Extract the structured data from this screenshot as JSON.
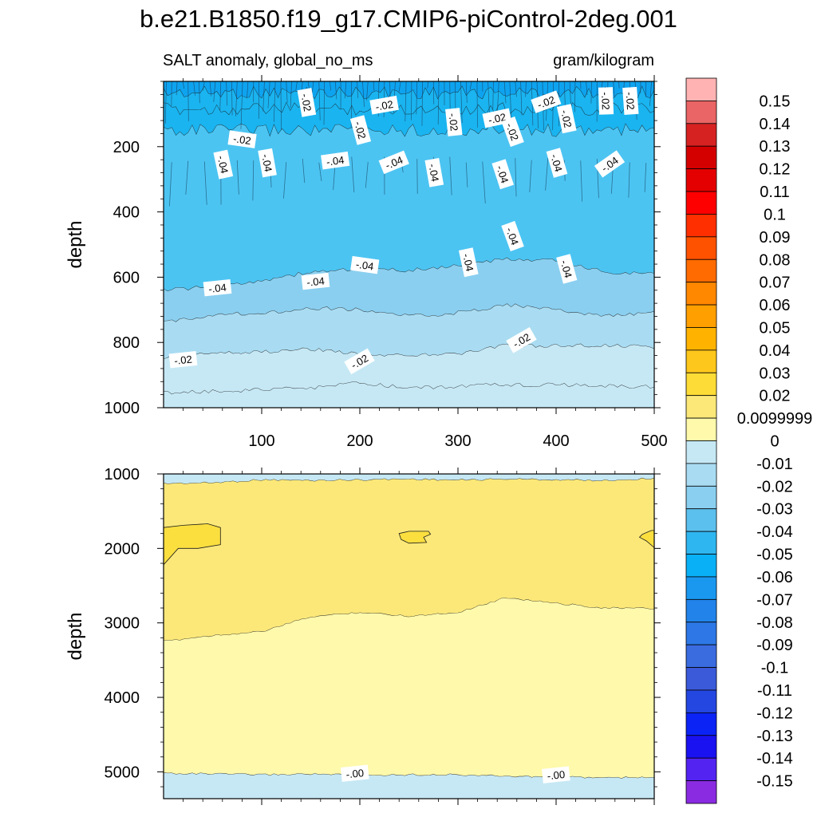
{
  "figure": {
    "title": "b.e21.B1850.f19_g17.CMIP6-piControl-2deg.001",
    "left_subtitle": "SALT anomaly, global_no_ms",
    "right_subtitle": "gram/kilogram"
  },
  "chart_data": [
    {
      "type": "contour",
      "panel": "upper",
      "ylabel": "depth",
      "xlabel": "",
      "xlim": [
        0,
        500
      ],
      "ylim": [
        1000,
        0
      ],
      "x_ticks": [
        100,
        200,
        300,
        400,
        500
      ],
      "y_ticks": [
        200,
        400,
        600,
        800,
        1000
      ],
      "bands": [
        {
          "range": [
            -0.07,
            -0.06
          ],
          "color": "#0ea3ef",
          "top": [
            0,
            0,
            0,
            0,
            0,
            0,
            0,
            0,
            0,
            0,
            0
          ],
          "bottom": [
            35,
            35,
            35,
            35,
            35,
            35,
            35,
            35,
            35,
            35,
            35
          ]
        },
        {
          "range": [
            -0.06,
            -0.05
          ],
          "color": "#1ab4f0",
          "top": [
            35,
            35,
            35,
            35,
            35,
            35,
            35,
            35,
            35,
            35,
            35
          ],
          "bottom": [
            85,
            85,
            85,
            85,
            85,
            85,
            85,
            85,
            85,
            85,
            85
          ]
        },
        {
          "range": [
            -0.05,
            -0.04
          ],
          "color": "#1ab4f0",
          "top": [
            85,
            85,
            85,
            85,
            85,
            85,
            85,
            85,
            85,
            85,
            85
          ],
          "bottom": [
            150,
            150,
            150,
            150,
            150,
            150,
            150,
            150,
            150,
            150,
            150
          ]
        },
        {
          "range": [
            -0.04,
            -0.03
          ],
          "color": "#4cc4f2",
          "top": [
            150,
            150,
            150,
            150,
            150,
            150,
            150,
            150,
            150,
            150,
            150
          ],
          "bottom": [
            640,
            630,
            610,
            585,
            575,
            580,
            565,
            545,
            550,
            585,
            590
          ]
        },
        {
          "range": [
            -0.03,
            -0.02
          ],
          "color": "#8acff0",
          "top": [
            640,
            630,
            610,
            585,
            575,
            580,
            565,
            545,
            550,
            585,
            590
          ],
          "bottom": [
            740,
            715,
            710,
            695,
            700,
            720,
            710,
            685,
            700,
            720,
            710
          ]
        },
        {
          "range": [
            -0.02,
            -0.01
          ],
          "color": "#a9dcf2",
          "top": [
            740,
            715,
            710,
            695,
            700,
            720,
            710,
            685,
            700,
            720,
            710
          ],
          "bottom": [
            845,
            830,
            830,
            820,
            835,
            840,
            835,
            810,
            810,
            810,
            815
          ]
        },
        {
          "range": [
            -0.01,
            0
          ],
          "color": "#c6e8f5",
          "top": [
            845,
            830,
            830,
            820,
            835,
            840,
            835,
            810,
            810,
            810,
            815
          ],
          "bottom": [
            955,
            950,
            945,
            940,
            925,
            940,
            935,
            930,
            930,
            935,
            935
          ]
        },
        {
          "range": [
            0,
            0.01
          ],
          "color": "#c6e8f5",
          "top": [
            955,
            950,
            945,
            940,
            925,
            940,
            935,
            930,
            930,
            935,
            935
          ],
          "bottom": [
            1000,
            1000,
            1000,
            1000,
            1000,
            1000,
            1000,
            1000,
            1000,
            1000,
            1000
          ]
        }
      ],
      "contour_labels": [
        {
          "text": "-.02",
          "x": 80,
          "y": 180
        },
        {
          "text": "-.02",
          "x": 145,
          "y": 65
        },
        {
          "text": "-.02",
          "x": 225,
          "y": 75
        },
        {
          "text": "-.02",
          "x": 200,
          "y": 150
        },
        {
          "text": "-.02",
          "x": 295,
          "y": 125
        },
        {
          "text": "-.02",
          "x": 340,
          "y": 115
        },
        {
          "text": "-.02",
          "x": 355,
          "y": 155
        },
        {
          "text": "-.02",
          "x": 390,
          "y": 65
        },
        {
          "text": "-.02",
          "x": 410,
          "y": 115
        },
        {
          "text": "-.02",
          "x": 450,
          "y": 60
        },
        {
          "text": "-.02",
          "x": 475,
          "y": 60
        },
        {
          "text": "-.04",
          "x": 60,
          "y": 255
        },
        {
          "text": "-.04",
          "x": 105,
          "y": 250
        },
        {
          "text": "-.04",
          "x": 175,
          "y": 245
        },
        {
          "text": "-.04",
          "x": 235,
          "y": 250
        },
        {
          "text": "-.04",
          "x": 275,
          "y": 280
        },
        {
          "text": "-.04",
          "x": 345,
          "y": 285
        },
        {
          "text": "-.04",
          "x": 400,
          "y": 250
        },
        {
          "text": "-.04",
          "x": 455,
          "y": 255
        },
        {
          "text": "-.04",
          "x": 355,
          "y": 475
        },
        {
          "text": "-.04",
          "x": 310,
          "y": 555
        },
        {
          "text": "-.04",
          "x": 205,
          "y": 565
        },
        {
          "text": "-.04",
          "x": 155,
          "y": 615
        },
        {
          "text": "-.04",
          "x": 55,
          "y": 635
        },
        {
          "text": "-.04",
          "x": 410,
          "y": 575
        },
        {
          "text": "-.02",
          "x": 20,
          "y": 855
        },
        {
          "text": "-.02",
          "x": 200,
          "y": 860
        },
        {
          "text": "-.02",
          "x": 365,
          "y": 795
        }
      ]
    },
    {
      "type": "contour",
      "panel": "lower",
      "ylabel": "depth",
      "xlabel": "",
      "xlim": [
        0,
        500
      ],
      "ylim": [
        5360,
        1000
      ],
      "x_ticks": [
        100,
        200,
        300,
        400,
        500
      ],
      "y_ticks": [
        1000,
        2000,
        3000,
        4000,
        5000
      ],
      "bands": [
        {
          "range": [
            0,
            0.01
          ],
          "color": "#c6e8f5",
          "top": [
            1000,
            1000,
            1000,
            1000,
            1000,
            1000,
            1000,
            1000,
            1000,
            1000,
            1000
          ],
          "bottom": [
            1130,
            1120,
            1080,
            1090,
            1080,
            1070,
            1085,
            1070,
            1080,
            1090,
            1060
          ]
        },
        {
          "range": [
            0.01,
            0.02
          ],
          "color": "#fce879",
          "top": [
            1130,
            1120,
            1080,
            1090,
            1080,
            1070,
            1085,
            1070,
            1080,
            1090,
            1060
          ],
          "bottom": [
            3250,
            3170,
            3120,
            2920,
            2860,
            2910,
            2860,
            2660,
            2740,
            2800,
            2810
          ]
        },
        {
          "range": [
            0,
            0.01
          ],
          "color": "#fef9ab",
          "top": [
            3250,
            3170,
            3120,
            2920,
            2860,
            2910,
            2860,
            2660,
            2740,
            2800,
            2810
          ],
          "bottom": [
            5020,
            5030,
            5040,
            5030,
            5050,
            5040,
            5040,
            5060,
            5070,
            5080,
            5080
          ]
        },
        {
          "range": [
            -0.01,
            0
          ],
          "color": "#c6e8f5",
          "top": [
            5020,
            5030,
            5040,
            5030,
            5050,
            5040,
            5040,
            5060,
            5070,
            5080,
            5080
          ],
          "bottom": [
            5360,
            5360,
            5360,
            5360,
            5360,
            5360,
            5360,
            5360,
            5360,
            5360,
            5360
          ]
        }
      ],
      "patches": [
        {
          "color": "#fbdf3f",
          "points": [
            [
              0,
              1720
            ],
            [
              20,
              1690
            ],
            [
              45,
              1670
            ],
            [
              58,
              1720
            ],
            [
              58,
              1950
            ],
            [
              35,
              2000
            ],
            [
              15,
              2000
            ],
            [
              0,
              2220
            ]
          ]
        },
        {
          "color": "#fbdf3f",
          "points": [
            [
              240,
              1800
            ],
            [
              250,
              1770
            ],
            [
              270,
              1770
            ],
            [
              272,
              1810
            ],
            [
              265,
              1850
            ],
            [
              268,
              1920
            ],
            [
              250,
              1930
            ],
            [
              242,
              1880
            ]
          ]
        },
        {
          "color": "#fbdf3f",
          "points": [
            [
              488,
              1810
            ],
            [
              497,
              1760
            ],
            [
              500,
              1760
            ],
            [
              500,
              1990
            ],
            [
              492,
              1900
            ],
            [
              485,
              1850
            ]
          ]
        }
      ],
      "contour_labels": [
        {
          "text": "-.00",
          "x": 195,
          "y": 5030
        },
        {
          "text": "-.00",
          "x": 400,
          "y": 5050
        }
      ]
    },
    {
      "type": "colorbar",
      "labels": [
        "0.15",
        "0.14",
        "0.13",
        "0.12",
        "0.11",
        "0.1",
        "0.09",
        "0.08",
        "0.07",
        "0.06",
        "0.05",
        "0.04",
        "0.03",
        "0.02",
        "0.0099999",
        "0",
        "-0.01",
        "-0.02",
        "-0.03",
        "-0.04",
        "-0.05",
        "-0.06",
        "-0.07",
        "-0.08",
        "-0.09",
        "-0.1",
        "-0.11",
        "-0.12",
        "-0.13",
        "-0.14",
        "-0.15"
      ],
      "colors": [
        "#ffb3b3",
        "#ea6565",
        "#d72222",
        "#d40000",
        "#e40000",
        "#ff0000",
        "#ff2f00",
        "#ff5200",
        "#ff6b00",
        "#ff8800",
        "#ff9f00",
        "#ffb300",
        "#fdc71c",
        "#fddc37",
        "#fce879",
        "#fef9ab",
        "#c6e8f5",
        "#a9dcf2",
        "#8acff0",
        "#5cc0ee",
        "#2eb6f1",
        "#0ab0f6",
        "#1a98f0",
        "#2284ea",
        "#2d78e6",
        "#3a6ce0",
        "#3b5ada",
        "#2447e2",
        "#0c23f5",
        "#1a12f0",
        "#5323f2",
        "#8a2be2"
      ]
    }
  ]
}
